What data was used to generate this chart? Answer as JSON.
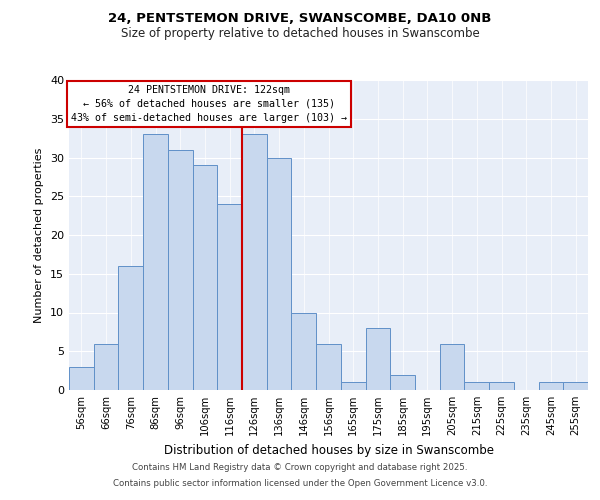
{
  "title1": "24, PENTSTEMON DRIVE, SWANSCOMBE, DA10 0NB",
  "title2": "Size of property relative to detached houses in Swanscombe",
  "xlabel": "Distribution of detached houses by size in Swanscombe",
  "ylabel": "Number of detached properties",
  "bar_labels": [
    "56sqm",
    "66sqm",
    "76sqm",
    "86sqm",
    "96sqm",
    "106sqm",
    "116sqm",
    "126sqm",
    "136sqm",
    "146sqm",
    "156sqm",
    "165sqm",
    "175sqm",
    "185sqm",
    "195sqm",
    "205sqm",
    "215sqm",
    "225sqm",
    "235sqm",
    "245sqm",
    "255sqm"
  ],
  "bar_values": [
    3,
    6,
    16,
    33,
    31,
    29,
    24,
    33,
    30,
    10,
    6,
    1,
    8,
    2,
    0,
    6,
    1,
    1,
    0,
    1,
    1
  ],
  "bar_color": "#c8d8ee",
  "bar_edge_color": "#6090c8",
  "red_line_x": 6.5,
  "red_line_color": "#cc0000",
  "annotation_title": "24 PENTSTEMON DRIVE: 122sqm",
  "annotation_line1": "← 56% of detached houses are smaller (135)",
  "annotation_line2": "43% of semi-detached houses are larger (103) →",
  "box_edge_color": "#cc0000",
  "box_face_color": "#ffffff",
  "yticks": [
    0,
    5,
    10,
    15,
    20,
    25,
    30,
    35,
    40
  ],
  "ylim": [
    0,
    40
  ],
  "footer1": "Contains HM Land Registry data © Crown copyright and database right 2025.",
  "footer2": "Contains public sector information licensed under the Open Government Licence v3.0.",
  "fig_bg_color": "#ffffff",
  "plot_bg_color": "#e8eef8"
}
